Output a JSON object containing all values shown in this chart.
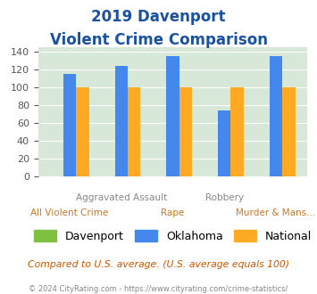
{
  "title_line1": "2019 Davenport",
  "title_line2": "Violent Crime Comparison",
  "davenport": [
    0,
    0,
    0,
    0,
    0
  ],
  "oklahoma": [
    115,
    124,
    135,
    74,
    135
  ],
  "national": [
    100,
    100,
    100,
    100,
    100
  ],
  "davenport_color": "#80c040",
  "oklahoma_color": "#4488ee",
  "national_color": "#ffaa22",
  "ylim": [
    0,
    145
  ],
  "yticks": [
    0,
    20,
    40,
    60,
    80,
    100,
    120,
    140
  ],
  "background_color": "#d8e8d8",
  "title_color": "#1a52a0",
  "subtitle_note": "Compared to U.S. average. (U.S. average equals 100)",
  "footer": "© 2024 CityRating.com - https://www.cityrating.com/crime-statistics/",
  "legend_labels": [
    "Davenport",
    "Oklahoma",
    "National"
  ],
  "bar_width": 0.25,
  "x_positions": [
    0,
    1,
    2,
    3,
    4
  ],
  "top_labels": [
    [
      1,
      "Aggravated Assault"
    ],
    [
      3,
      "Robbery"
    ]
  ],
  "bottom_labels": [
    [
      0,
      "All Violent Crime"
    ],
    [
      2,
      "Rape"
    ],
    [
      4,
      "Murder & Mans..."
    ]
  ]
}
